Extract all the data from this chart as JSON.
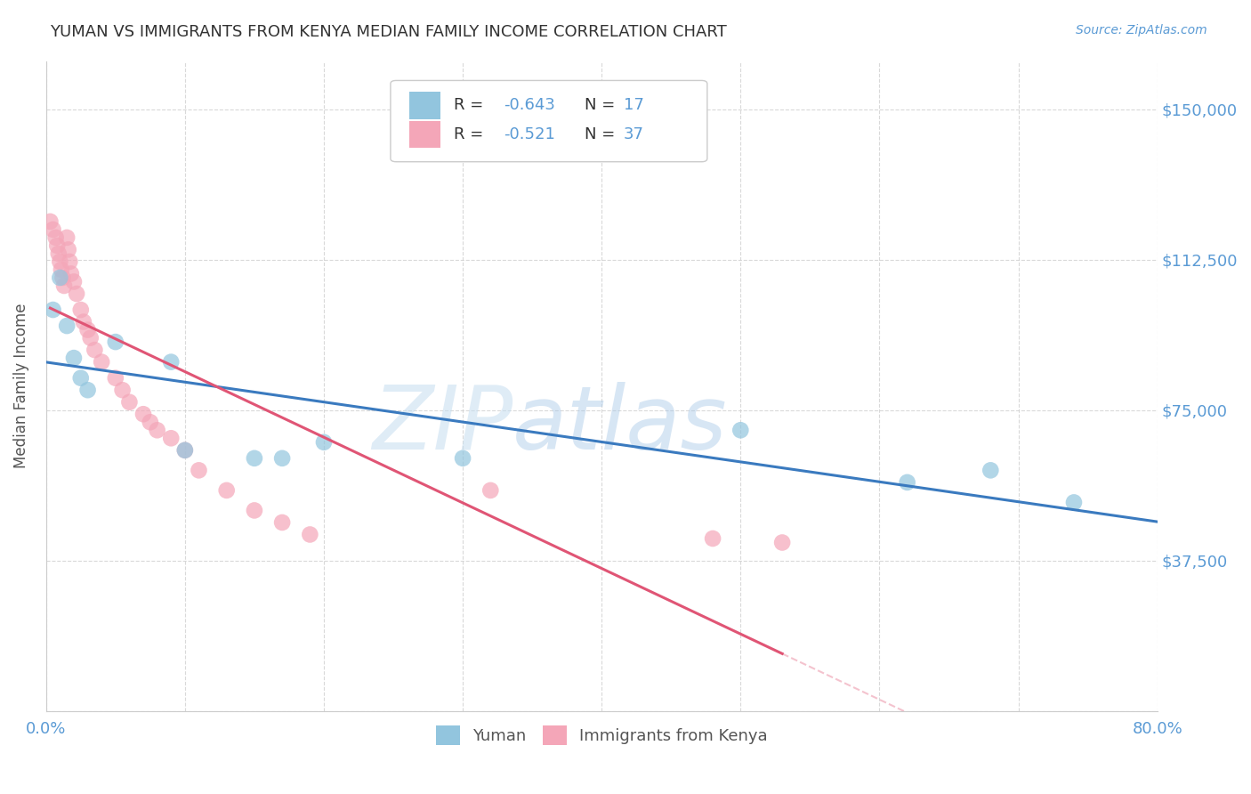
{
  "title": "YUMAN VS IMMIGRANTS FROM KENYA MEDIAN FAMILY INCOME CORRELATION CHART",
  "source_text": "Source: ZipAtlas.com",
  "ylabel": "Median Family Income",
  "xlim": [
    0.0,
    0.8
  ],
  "ylim": [
    0,
    162000
  ],
  "yticks": [
    0,
    37500,
    75000,
    112500,
    150000
  ],
  "ytick_labels": [
    "",
    "$37,500",
    "$75,000",
    "$112,500",
    "$150,000"
  ],
  "xticks": [
    0.0,
    0.1,
    0.2,
    0.3,
    0.4,
    0.5,
    0.6,
    0.7,
    0.8
  ],
  "watermark_zip": "ZIP",
  "watermark_atlas": "atlas",
  "blue_series": {
    "name": "Yuman",
    "R": -0.643,
    "N": 17,
    "color": "#92c5de",
    "x": [
      0.005,
      0.01,
      0.015,
      0.02,
      0.025,
      0.03,
      0.05,
      0.09,
      0.1,
      0.15,
      0.17,
      0.2,
      0.3,
      0.5,
      0.62,
      0.68,
      0.74
    ],
    "y": [
      100000,
      108000,
      96000,
      88000,
      83000,
      80000,
      92000,
      87000,
      65000,
      63000,
      63000,
      67000,
      63000,
      70000,
      57000,
      60000,
      52000
    ]
  },
  "pink_series": {
    "name": "Immigrants from Kenya",
    "R": -0.521,
    "N": 37,
    "color": "#f4a6b8",
    "x": [
      0.003,
      0.005,
      0.007,
      0.008,
      0.009,
      0.01,
      0.011,
      0.012,
      0.013,
      0.015,
      0.016,
      0.017,
      0.018,
      0.02,
      0.022,
      0.025,
      0.027,
      0.03,
      0.032,
      0.035,
      0.04,
      0.05,
      0.055,
      0.06,
      0.07,
      0.075,
      0.08,
      0.09,
      0.1,
      0.11,
      0.13,
      0.15,
      0.17,
      0.19,
      0.32,
      0.48,
      0.53
    ],
    "y": [
      122000,
      120000,
      118000,
      116000,
      114000,
      112000,
      110000,
      108000,
      106000,
      118000,
      115000,
      112000,
      109000,
      107000,
      104000,
      100000,
      97000,
      95000,
      93000,
      90000,
      87000,
      83000,
      80000,
      77000,
      74000,
      72000,
      70000,
      68000,
      65000,
      60000,
      55000,
      50000,
      47000,
      44000,
      55000,
      43000,
      42000
    ]
  },
  "title_color": "#333333",
  "axis_label_color": "#5b9bd5",
  "grid_color": "#d0d0d0",
  "trend_blue_color": "#3a7abf",
  "trend_pink_color": "#e05575",
  "legend_text_color": "#333333",
  "legend_value_color": "#5b9bd5"
}
